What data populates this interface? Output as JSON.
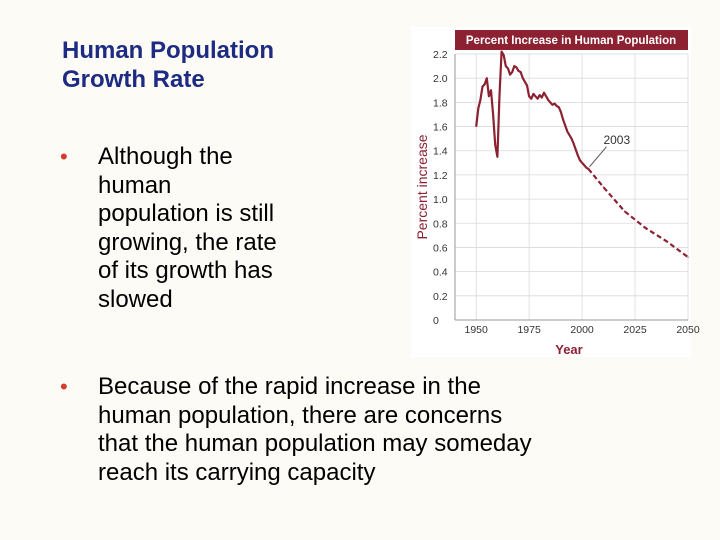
{
  "slide": {
    "title": "Human Population\n   Growth Rate",
    "bullets": [
      "Although the\nhuman\npopulation is still\ngrowing, the rate\nof its growth has\nslowed",
      "Because of the rapid increase in the\nhuman population, there are concerns\nthat the human population may someday\nreach its carrying capacity"
    ],
    "bullet_marker": "•"
  },
  "colors": {
    "title": "#1e2b82",
    "bullet_marker": "#d33d2b",
    "chart_accent": "#8b2131",
    "line": "#8b2131"
  },
  "chart_data": {
    "type": "line",
    "title": "Percent Increase in Human Population",
    "xlabel": "Year",
    "ylabel": "Percent increase",
    "xlim": [
      1940,
      2050
    ],
    "ylim": [
      0,
      2.2
    ],
    "x_ticks": [
      "1950",
      "1975",
      "2000",
      "2025",
      "2050"
    ],
    "y_ticks": [
      "0",
      "0.2",
      "0.4",
      "0.6",
      "0.8",
      "1.0",
      "1.2",
      "1.4",
      "1.6",
      "1.8",
      "2.0",
      "2.2"
    ],
    "grid": true,
    "annotation": {
      "text": "2003",
      "x": 2003,
      "y": 1.25
    },
    "series": [
      {
        "style": "solid",
        "x": [
          1950,
          1951,
          1952,
          1953,
          1954,
          1955,
          1956,
          1957,
          1958,
          1959,
          1960,
          1961,
          1962,
          1963,
          1964,
          1965,
          1966,
          1967,
          1968,
          1969,
          1970,
          1971,
          1972,
          1973,
          1974,
          1975,
          1976,
          1977,
          1978,
          1979,
          1980,
          1981,
          1982,
          1983,
          1984,
          1985,
          1986,
          1987,
          1988,
          1989,
          1990,
          1991,
          1992,
          1993,
          1994,
          1995,
          1996,
          1997,
          1998,
          1999,
          2000,
          2001,
          2002,
          2003
        ],
        "y": [
          1.6,
          1.75,
          1.82,
          1.93,
          1.95,
          2.0,
          1.85,
          1.9,
          1.7,
          1.45,
          1.35,
          1.86,
          2.22,
          2.19,
          2.1,
          2.08,
          2.03,
          2.05,
          2.1,
          2.09,
          2.06,
          2.05,
          2.0,
          1.97,
          1.94,
          1.85,
          1.83,
          1.87,
          1.85,
          1.83,
          1.86,
          1.84,
          1.88,
          1.85,
          1.82,
          1.8,
          1.78,
          1.79,
          1.77,
          1.76,
          1.72,
          1.66,
          1.61,
          1.56,
          1.53,
          1.5,
          1.46,
          1.41,
          1.36,
          1.32,
          1.3,
          1.28,
          1.26,
          1.25
        ]
      },
      {
        "style": "dashed",
        "x": [
          2003,
          2010,
          2020,
          2030,
          2040,
          2050
        ],
        "y": [
          1.25,
          1.1,
          0.9,
          0.76,
          0.65,
          0.52
        ]
      }
    ]
  }
}
